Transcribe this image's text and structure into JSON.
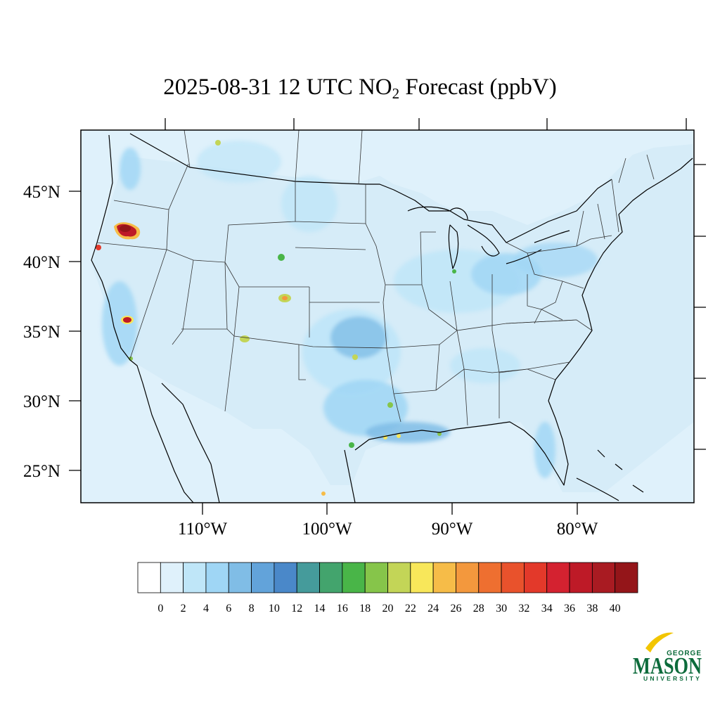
{
  "title": {
    "prefix": "2025-08-31 12 UTC NO",
    "subscript": "2",
    "suffix": " Forecast (ppbV)"
  },
  "map": {
    "ocean_color": "#dff1fb",
    "lat_labels": [
      "45°N",
      "40°N",
      "35°N",
      "30°N",
      "25°N"
    ],
    "lon_labels": [
      "110°W",
      "100°W",
      "90°W",
      "80°W"
    ]
  },
  "colorbar": {
    "colors": [
      "#ffffff",
      "#dff1fb",
      "#bfe6f8",
      "#9fd6f5",
      "#80bde6",
      "#62a3da",
      "#4a88c9",
      "#459b9b",
      "#43a46d",
      "#49b548",
      "#86c54a",
      "#c3d557",
      "#f8e75a",
      "#f6bc48",
      "#f3983d",
      "#ee6f30",
      "#e9522c",
      "#e3392a",
      "#d42230",
      "#be1a27",
      "#a91b22",
      "#941519"
    ],
    "labels": [
      "0",
      "2",
      "4",
      "6",
      "8",
      "10",
      "12",
      "14",
      "16",
      "18",
      "20",
      "22",
      "24",
      "26",
      "28",
      "30",
      "32",
      "34",
      "36",
      "38",
      "40"
    ]
  },
  "logo": {
    "top": "GEORGE",
    "main": "MASON",
    "bottom": "UNIVERSITY",
    "color": "#0c6b3b",
    "accent": "#f2c500"
  }
}
